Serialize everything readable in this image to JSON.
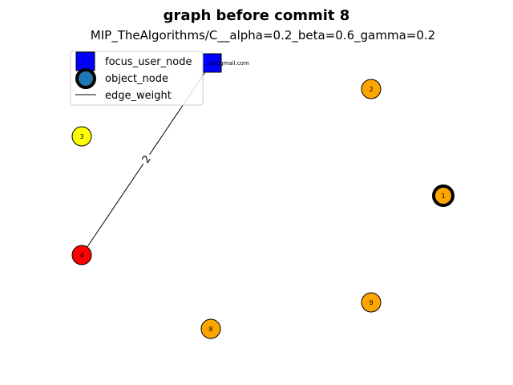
{
  "title": "graph before commit 8",
  "subtitle": "MIP_TheAlgorithms/C__alpha=0.2_beta=0.6_gamma=0.2",
  "legend": {
    "focus_user_node": "focus_user_node",
    "object_node": "object_node",
    "edge_weight": "edge_weight"
  },
  "focus_node": {
    "label": "...cs@gmail.com",
    "color": "#0000ff"
  },
  "nodes": [
    {
      "id": "1",
      "label": "1",
      "color": "#ffa500",
      "highlight": true
    },
    {
      "id": "2",
      "label": "2",
      "color": "#ffa500",
      "highlight": false
    },
    {
      "id": "3",
      "label": "3",
      "color": "#ffff00",
      "highlight": false
    },
    {
      "id": "4",
      "label": "4",
      "color": "#ff0000",
      "highlight": false
    },
    {
      "id": "8",
      "label": "8",
      "color": "#ffa500",
      "highlight": false
    },
    {
      "id": "9",
      "label": "9",
      "color": "#ffa500",
      "highlight": false
    }
  ],
  "edges": [
    {
      "source": "focus",
      "target": "4",
      "weight": "2"
    }
  ]
}
